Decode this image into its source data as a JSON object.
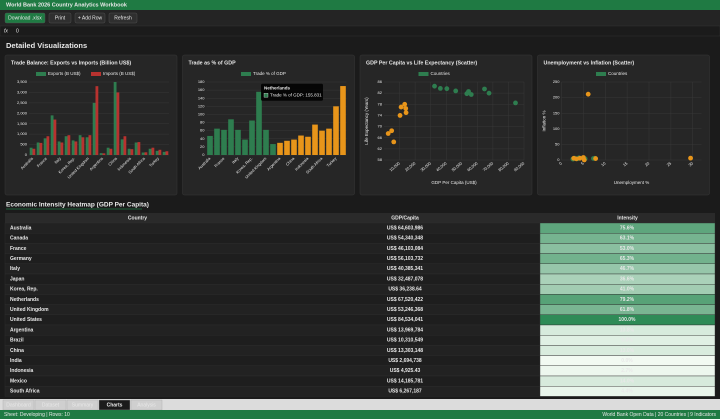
{
  "header": {
    "title": "World Bank 2026 Country Analytics Workbook"
  },
  "toolbar": {
    "buttons": [
      "Download .xlsx",
      "Print",
      "+ Add Row",
      "Refresh"
    ]
  },
  "formula_bar": {
    "label": "fx",
    "value": "0"
  },
  "section_title": "Detailed Visualizations",
  "chart_data": [
    {
      "type": "bar",
      "title": "Trade Balance: Exports vs Imports (Billion US$)",
      "categories": [
        "Australia",
        null,
        "France",
        null,
        "Italy",
        null,
        "Korea, Rep.",
        null,
        "United Kingdom",
        null,
        "Argentina",
        null,
        "China",
        null,
        "Indonesia",
        null,
        "South Africa",
        null,
        "Turkey",
        null
      ],
      "series": [
        {
          "name": "Exports (B US$)",
          "color": "#2e7d4f",
          "values": [
            350,
            600,
            800,
            1900,
            650,
            900,
            700,
            950,
            850,
            2500,
            90,
            350,
            3500,
            750,
            300,
            600,
            120,
            300,
            200,
            150
          ]
        },
        {
          "name": "Imports (B US$)",
          "color": "#b8322f",
          "values": [
            300,
            580,
            900,
            1700,
            600,
            950,
            650,
            850,
            950,
            3300,
            80,
            300,
            3000,
            900,
            280,
            620,
            130,
            350,
            250,
            180
          ]
        }
      ],
      "ylim": [
        0,
        3500
      ],
      "yticks": [
        0,
        500,
        {
          "value": 1000,
          "label": "1,000"
        },
        {
          "value": 1500,
          "label": "1,500"
        },
        {
          "value": 2000,
          "label": "2,000"
        },
        {
          "value": 2500,
          "label": "2,500"
        },
        {
          "value": 3000,
          "label": "3,000"
        },
        {
          "value": 3500,
          "label": "3,500"
        }
      ],
      "grid": true
    },
    {
      "type": "bar",
      "title": "Trade as % of GDP",
      "categories": [
        "Australia",
        null,
        "France",
        null,
        "Italy",
        null,
        "Korea, Rep.",
        null,
        "United Kingdom",
        null,
        "Argentina",
        null,
        "China",
        null,
        "Indonesia",
        null,
        "South Africa",
        null,
        "Turkey",
        null
      ],
      "series": [
        {
          "name": "Trade % of GDP",
          "color": "#2e7d4f",
          "values": [
            47,
            65,
            62,
            88,
            62,
            38,
            85,
            155.831,
            62,
            27,
            30,
            35,
            38,
            48,
            45,
            75,
            60,
            65,
            120,
            170
          ]
        }
      ],
      "colors": [
        "#2e7d4f",
        "#2e7d4f",
        "#2e7d4f",
        "#2e7d4f",
        "#2e7d4f",
        "#2e7d4f",
        "#2e7d4f",
        "#2e7d4f",
        "#2e7d4f",
        "#2e7d4f",
        "#e8951a",
        "#e8951a",
        "#e8951a",
        "#e8951a",
        "#e8951a",
        "#e8951a",
        "#e8951a",
        "#e8951a",
        "#e8951a",
        "#e8951a"
      ],
      "ylim": [
        0,
        180
      ],
      "yticks": [
        0,
        20,
        40,
        60,
        80,
        100,
        120,
        140,
        160,
        180
      ],
      "grid": true,
      "tooltip": {
        "index": 7,
        "title": "Netherlands",
        "text": "Trade % of GDP: 155.831"
      }
    },
    {
      "type": "scatter",
      "title": "GDP Per Capita vs Life Expectancy (Scatter)",
      "series": [
        {
          "name": "Countries",
          "color": "#2e7d4f"
        }
      ],
      "x": [
        64604,
        54340,
        46103,
        56104,
        40385,
        32487,
        36239,
        67520,
        53246,
        84534,
        13970,
        10311,
        13303,
        2695,
        4925,
        14186,
        6267,
        11000
      ],
      "values": [
        83.5,
        82.6,
        82.8,
        81.5,
        83.6,
        84.5,
        83.7,
        82.0,
        81.8,
        78.5,
        76.5,
        74.0,
        78.0,
        67.5,
        68.5,
        75.0,
        64.5,
        77.0
      ],
      "colors": [
        "#2e7d4f",
        "#2e7d4f",
        "#2e7d4f",
        "#2e7d4f",
        "#2e7d4f",
        "#2e7d4f",
        "#2e7d4f",
        "#2e7d4f",
        "#2e7d4f",
        "#2e7d4f",
        "#e8951a",
        "#e8951a",
        "#e8951a",
        "#e8951a",
        "#e8951a",
        "#e8951a",
        "#e8951a",
        "#e8951a"
      ],
      "x_label": "GDP Per Capita (US$)",
      "y_label": "Life Expectancy (Years)",
      "xlim": [
        0,
        90000
      ],
      "xticks": [
        {
          "value": 10000,
          "label": "10,000"
        },
        {
          "value": 20000,
          "label": "20,000"
        },
        {
          "value": 30000,
          "label": "30,000"
        },
        {
          "value": 40000,
          "label": "40,000"
        },
        {
          "value": 50000,
          "label": "50,000"
        },
        {
          "value": 60000,
          "label": "60,000"
        },
        {
          "value": 70000,
          "label": "70,000"
        },
        {
          "value": 80000,
          "label": "80,000"
        },
        {
          "value": 90000,
          "label": "90,000"
        }
      ],
      "ylim": [
        58,
        86
      ],
      "yticks": [
        58,
        62,
        66,
        70,
        74,
        78,
        82,
        86
      ],
      "grid": true
    },
    {
      "type": "scatter",
      "title": "Unemployment vs Inflation (Scatter)",
      "series": [
        {
          "name": "Countries",
          "color": "#2e7d4f"
        }
      ],
      "x": [
        3.7,
        5.4,
        7.3,
        3.0,
        7.6,
        2.6,
        2.7,
        3.6,
        4.0,
        3.6,
        6.1,
        7.8,
        5.2,
        4.2,
        3.4,
        2.8,
        29.5,
        5.0
      ],
      "values": [
        4.1,
        3.9,
        4.9,
        5.9,
        5.7,
        3.2,
        3.6,
        4.1,
        7.3,
        4.1,
        211,
        4.6,
        0.2,
        5.6,
        3.7,
        5.5,
        6.0,
        8.0
      ],
      "colors": [
        "#2e7d4f",
        "#2e7d4f",
        "#2e7d4f",
        "#2e7d4f",
        "#2e7d4f",
        "#2e7d4f",
        "#2e7d4f",
        "#2e7d4f",
        "#2e7d4f",
        "#2e7d4f",
        "#e8951a",
        "#e8951a",
        "#e8951a",
        "#e8951a",
        "#e8951a",
        "#e8951a",
        "#e8951a",
        "#e8951a"
      ],
      "x_label": "Unemployment %",
      "y_label": "Inflation %",
      "xlim": [
        0,
        32
      ],
      "xticks": [
        0,
        5,
        10,
        15,
        20,
        25,
        30
      ],
      "ylim": [
        0,
        250
      ],
      "yticks": [
        0,
        50,
        100,
        150,
        200,
        250
      ],
      "grid": true
    }
  ],
  "heatmap": {
    "title": "Economic Intensity Heatmap (GDP Per Capita)",
    "columns": [
      "Country",
      "GDP/Capita",
      "Intensity"
    ],
    "rows": [
      {
        "country": "Australia",
        "gdp": "US$ 64,603,986",
        "intensity": 75.6,
        "intensity_label": "75.6%"
      },
      {
        "country": "Canada",
        "gdp": "US$ 54,340,348",
        "intensity": 63.1,
        "intensity_label": "63.1%"
      },
      {
        "country": "France",
        "gdp": "US$ 46,103,084",
        "intensity": 53.0,
        "intensity_label": "53.0%"
      },
      {
        "country": "Germany",
        "gdp": "US$ 56,103,732",
        "intensity": 65.3,
        "intensity_label": "65.3%"
      },
      {
        "country": "Italy",
        "gdp": "US$ 40,385,341",
        "intensity": 46.7,
        "intensity_label": "46.7%"
      },
      {
        "country": "Japan",
        "gdp": "US$ 32,487,078",
        "intensity": 36.6,
        "intensity_label": "36.6%"
      },
      {
        "country": "Korea, Rep.",
        "gdp": "US$ 36,238.64",
        "intensity": 41.0,
        "intensity_label": "41.0%"
      },
      {
        "country": "Netherlands",
        "gdp": "US$ 67,520,422",
        "intensity": 79.2,
        "intensity_label": "79.2%"
      },
      {
        "country": "United Kingdom",
        "gdp": "US$ 53,246,368",
        "intensity": 61.8,
        "intensity_label": "61.8%"
      },
      {
        "country": "United States",
        "gdp": "US$ 84,534,041",
        "intensity": 100.0,
        "intensity_label": "100.0%"
      },
      {
        "country": "Argentina",
        "gdp": "US$ 13,969,784",
        "intensity": 13.8,
        "intensity_label": "13.8%"
      },
      {
        "country": "Brazil",
        "gdp": "US$ 10,310,549",
        "intensity": 9.3,
        "intensity_label": "9.3%"
      },
      {
        "country": "China",
        "gdp": "US$ 13,303,148",
        "intensity": 13.0,
        "intensity_label": "13.0%"
      },
      {
        "country": "India",
        "gdp": "US$ 2,694,738",
        "intensity": 0.0,
        "intensity_label": "0.0%"
      },
      {
        "country": "Indonesia",
        "gdp": "US$ 4,925.43",
        "intensity": 2.7,
        "intensity_label": "2.7%"
      },
      {
        "country": "Mexico",
        "gdp": "US$ 14,185,781",
        "intensity": 14.0,
        "intensity_label": "14.0%"
      },
      {
        "country": "South Africa",
        "gdp": "US$ 6,267,187",
        "intensity": 4.4,
        "intensity_label": "4.4%"
      }
    ]
  },
  "tabs": [
    "Dashboard",
    "Dataset",
    "Summary",
    "Charts",
    "Analysis"
  ],
  "active_tab": 3,
  "status": {
    "left": "Sheet: Developing | Rows: 10",
    "right": "World Bank Open Data | 20 Countries | 9 Indicators"
  }
}
